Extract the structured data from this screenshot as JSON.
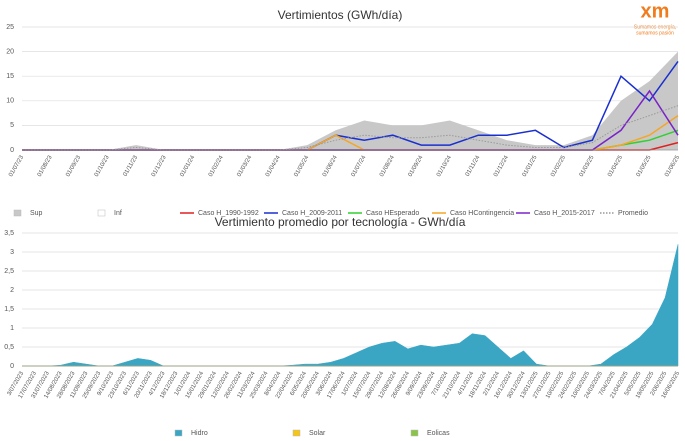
{
  "logo": {
    "mark": "xm",
    "tagline": [
      "Sumamos energía,",
      "sumamos pasión"
    ]
  },
  "chart_data": [
    {
      "type": "line",
      "title": "Vertimientos (GWh/día)",
      "categories": [
        "01/07/23",
        "01/08/23",
        "01/09/23",
        "01/10/23",
        "01/11/23",
        "01/12/23",
        "01/01/24",
        "01/02/24",
        "01/03/24",
        "01/04/24",
        "01/05/24",
        "01/06/24",
        "01/07/24",
        "01/08/24",
        "01/09/24",
        "01/10/24",
        "01/11/24",
        "01/12/24",
        "01/01/25",
        "01/02/25",
        "01/03/25",
        "01/04/25",
        "01/05/25",
        "01/06/25"
      ],
      "ylim": [
        0,
        25
      ],
      "yticks": [
        0,
        5,
        10,
        15,
        20,
        25
      ],
      "grid": true,
      "series": [
        {
          "name": "Sup",
          "color": "#c8c8c8",
          "style": "area",
          "values": [
            0,
            0,
            0,
            0,
            1,
            0,
            0,
            0,
            0,
            0,
            1,
            4,
            6,
            5,
            5,
            6,
            4,
            2,
            1,
            1,
            3,
            10,
            14,
            20
          ]
        },
        {
          "name": "Inf",
          "color": "#ffffff",
          "style": "area",
          "values": [
            0,
            0,
            0,
            0,
            0,
            0,
            0,
            0,
            0,
            0,
            0,
            0,
            0,
            0,
            0,
            0,
            0,
            0,
            0,
            0,
            0,
            0,
            0,
            0
          ]
        },
        {
          "name": "Caso H_1990-1992",
          "color": "#e02020",
          "style": "line",
          "values": [
            0,
            0,
            0,
            0,
            0,
            0,
            0,
            0,
            0,
            0,
            0,
            0,
            0,
            0,
            0,
            0,
            0,
            0,
            0,
            0,
            0,
            0,
            0,
            1.5
          ]
        },
        {
          "name": "Caso H_2009-2011",
          "color": "#1a2fd0",
          "style": "line",
          "values": [
            0,
            0,
            0,
            0,
            0,
            0,
            0,
            0,
            0,
            0,
            0,
            3,
            2,
            3,
            1,
            1,
            3,
            3,
            4,
            0.5,
            2,
            15,
            10,
            18
          ]
        },
        {
          "name": "Caso HEsperado",
          "color": "#30d030",
          "style": "line",
          "values": [
            0,
            0,
            0,
            0,
            0,
            0,
            0,
            0,
            0,
            0,
            0,
            0,
            0,
            0,
            0,
            0,
            0,
            0,
            0,
            0,
            0,
            1,
            2,
            4
          ]
        },
        {
          "name": "Caso HContingencia",
          "color": "#f5a623",
          "style": "line",
          "values": [
            0,
            0,
            0,
            0,
            0,
            0,
            0,
            0,
            0,
            0,
            0,
            3,
            0,
            0,
            0,
            0,
            0,
            0,
            0,
            0,
            0,
            1,
            3,
            7
          ]
        },
        {
          "name": "Caso H_2015-2017",
          "color": "#7a22c8",
          "style": "line",
          "values": [
            0,
            0,
            0,
            0,
            0,
            0,
            0,
            0,
            0,
            0,
            0,
            0,
            0,
            0,
            0,
            0,
            0,
            0,
            0,
            0,
            0,
            4,
            12,
            3
          ]
        },
        {
          "name": "Promedio",
          "color": "#999999",
          "style": "dotted",
          "values": [
            0,
            0,
            0,
            0,
            0.5,
            0,
            0,
            0,
            0,
            0,
            0.5,
            2,
            3,
            2.5,
            2.5,
            3,
            2,
            1,
            0.5,
            0.5,
            1.5,
            5,
            7,
            9
          ]
        }
      ]
    },
    {
      "type": "area",
      "title": "Vertimiento promedio por tecnología - GWh/día",
      "categories": [
        "3/07/2023",
        "17/07/2023",
        "31/07/2023",
        "14/08/2023",
        "28/08/2023",
        "11/09/2023",
        "25/09/2023",
        "9/10/2023",
        "23/10/2023",
        "6/11/2023",
        "20/11/2023",
        "4/12/2023",
        "18/12/2023",
        "1/01/2024",
        "15/01/2024",
        "29/01/2024",
        "12/02/2024",
        "26/02/2024",
        "11/03/2024",
        "25/03/2024",
        "8/04/2024",
        "22/04/2024",
        "6/05/2024",
        "20/05/2024",
        "3/06/2024",
        "17/06/2024",
        "1/07/2024",
        "15/07/2024",
        "29/07/2024",
        "12/08/2024",
        "26/08/2024",
        "9/09/2024",
        "23/09/2024",
        "7/10/2024",
        "21/10/2024",
        "4/11/2024",
        "18/11/2024",
        "2/12/2024",
        "16/12/2024",
        "30/12/2024",
        "13/01/2025",
        "27/01/2025",
        "10/02/2025",
        "24/02/2025",
        "10/03/2025",
        "24/03/2025",
        "7/04/2025",
        "21/04/2025",
        "5/05/2025",
        "19/05/2025",
        "2/06/2025",
        "16/06/2025"
      ],
      "ylim": [
        0,
        3.5
      ],
      "yticks": [
        0,
        {
          "value": 0.5,
          "label": "0,5"
        },
        1,
        {
          "value": 1.5,
          "label": "1,5"
        },
        2,
        {
          "value": 2.5,
          "label": "2,5"
        },
        3,
        {
          "value": 3.5,
          "label": "3,5"
        }
      ],
      "grid": true,
      "series": [
        {
          "name": "Hidro",
          "color": "#3aa6c4",
          "values": [
            0,
            0,
            0,
            0.02,
            0.1,
            0.05,
            0,
            0,
            0.1,
            0.2,
            0.15,
            0,
            0,
            0,
            0,
            0,
            0,
            0,
            0,
            0,
            0,
            0.02,
            0.05,
            0.05,
            0.1,
            0.2,
            0.35,
            0.5,
            0.6,
            0.65,
            0.45,
            0.55,
            0.5,
            0.55,
            0.6,
            0.85,
            0.8,
            0.5,
            0.2,
            0.4,
            0.05,
            0,
            0,
            0,
            0,
            0.05,
            0.3,
            0.5,
            0.75,
            1.1,
            1.8,
            3.2
          ]
        },
        {
          "name": "Solar",
          "color": "#f5c518",
          "values": [
            0,
            0,
            0,
            0,
            0,
            0,
            0,
            0,
            0,
            0,
            0,
            0,
            0,
            0,
            0,
            0,
            0,
            0,
            0,
            0,
            0,
            0,
            0,
            0,
            0,
            0,
            0,
            0,
            0,
            0,
            0,
            0,
            0,
            0,
            0,
            0,
            0,
            0,
            0,
            0,
            0,
            0,
            0,
            0,
            0,
            0,
            0,
            0,
            0,
            0,
            0,
            0
          ]
        },
        {
          "name": "Eolicas",
          "color": "#8bc34a",
          "values": [
            0,
            0,
            0,
            0,
            0,
            0,
            0,
            0,
            0,
            0,
            0,
            0,
            0,
            0,
            0,
            0,
            0,
            0,
            0,
            0,
            0,
            0,
            0,
            0,
            0,
            0,
            0,
            0,
            0,
            0,
            0,
            0,
            0,
            0,
            0,
            0,
            0,
            0,
            0,
            0,
            0,
            0,
            0,
            0,
            0,
            0,
            0,
            0,
            0,
            0,
            0,
            0
          ]
        }
      ]
    }
  ]
}
